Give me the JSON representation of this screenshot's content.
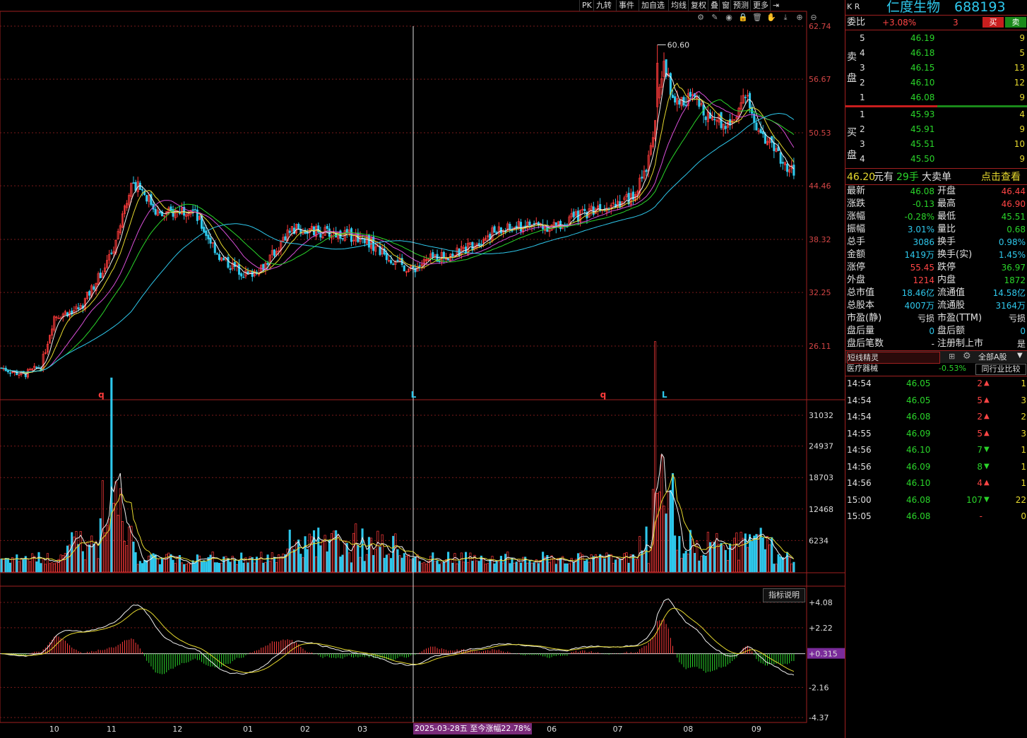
{
  "toolbar": {
    "items": [
      "PK",
      "九转",
      "事件",
      "加自选",
      "均线",
      "复权",
      "叠",
      "窗",
      "预测",
      "更多"
    ],
    "icons": [
      "gear-icon",
      "pencil-icon",
      "eye-icon",
      "lock-icon",
      "trash-icon",
      "hand-icon",
      "download-icon",
      "zoom-in-icon",
      "zoom-out-icon"
    ]
  },
  "stock": {
    "market": "K R",
    "name": "仁度生物",
    "code": "688193",
    "weibi_label": "委比",
    "weibi_value": "+3.08%",
    "weibi_count": "3",
    "buy_btn": "买",
    "sell_btn": "卖"
  },
  "order_book": {
    "sell_label": "卖盘",
    "buy_label": "买盘",
    "asks": [
      {
        "level": "5",
        "price": "46.19",
        "vol": "9"
      },
      {
        "level": "4",
        "price": "46.18",
        "vol": "5"
      },
      {
        "level": "3",
        "price": "46.15",
        "vol": "13"
      },
      {
        "level": "2",
        "price": "46.10",
        "vol": "12"
      },
      {
        "level": "1",
        "price": "46.08",
        "vol": "9"
      }
    ],
    "bids": [
      {
        "level": "1",
        "price": "45.93",
        "vol": "4"
      },
      {
        "level": "2",
        "price": "45.91",
        "vol": "9"
      },
      {
        "level": "3",
        "price": "45.51",
        "vol": "10"
      },
      {
        "level": "4",
        "price": "45.50",
        "vol": "9"
      }
    ],
    "big_order": {
      "price": "46.20",
      "unit": "元有",
      "qty": "29手",
      "type": "大卖单",
      "action": "点击查看"
    }
  },
  "quote": [
    {
      "l1": "最新",
      "v1": "46.08",
      "c1": "green",
      "l2": "开盘",
      "v2": "46.44",
      "c2": "red"
    },
    {
      "l1": "涨跌",
      "v1": "-0.13",
      "c1": "green",
      "l2": "最高",
      "v2": "46.90",
      "c2": "red"
    },
    {
      "l1": "涨幅",
      "v1": "-0.28%",
      "c1": "green",
      "l2": "最低",
      "v2": "45.51",
      "c2": "green"
    },
    {
      "l1": "振幅",
      "v1": "3.01%",
      "c1": "cyan",
      "l2": "量比",
      "v2": "0.68",
      "c2": "green"
    },
    {
      "l1": "总手",
      "v1": "3086",
      "c1": "cyan",
      "l2": "换手",
      "v2": "0.98%",
      "c2": "cyan"
    },
    {
      "l1": "金额",
      "v1": "1419万",
      "c1": "cyan",
      "l2": "换手(实)",
      "v2": "1.45%",
      "c2": "cyan"
    },
    {
      "l1": "涨停",
      "v1": "55.45",
      "c1": "red",
      "l2": "跌停",
      "v2": "36.97",
      "c2": "green"
    },
    {
      "l1": "外盘",
      "v1": "1214",
      "c1": "red",
      "l2": "内盘",
      "v2": "1872",
      "c2": "green"
    },
    {
      "l1": "总市值",
      "v1": "18.46亿",
      "c1": "cyan",
      "l2": "流通值",
      "v2": "14.58亿",
      "c2": "cyan"
    },
    {
      "l1": "总股本",
      "v1": "4007万",
      "c1": "cyan",
      "l2": "流通股",
      "v2": "3164万",
      "c2": "cyan"
    },
    {
      "l1": "市盈(静)",
      "v1": "亏损",
      "c1": "white",
      "l2": "市盈(TTM)",
      "v2": "亏损",
      "c2": "white"
    },
    {
      "l1": "盘后量",
      "v1": "0",
      "c1": "cyan",
      "l2": "盘后额",
      "v2": "0",
      "c2": "cyan"
    },
    {
      "l1": "盘后笔数",
      "v1": "-",
      "c1": "white",
      "l2": "注册制上市",
      "v2": "是",
      "c2": "white"
    }
  ],
  "sector": {
    "tab1": "短线精灵",
    "tab2": "全部A股",
    "industry": "医疗器械",
    "industry_change": "-0.53%",
    "compare": "同行业比较"
  },
  "ticks": [
    {
      "time": "14:54",
      "price": "46.05",
      "vol": "2",
      "dir": "up",
      "n": "1"
    },
    {
      "time": "14:54",
      "price": "46.05",
      "vol": "5",
      "dir": "up",
      "n": "3"
    },
    {
      "time": "14:54",
      "price": "46.08",
      "vol": "2",
      "dir": "up",
      "n": "2"
    },
    {
      "time": "14:55",
      "price": "46.09",
      "vol": "5",
      "dir": "up",
      "n": "3"
    },
    {
      "time": "14:56",
      "price": "46.10",
      "vol": "7",
      "dir": "down",
      "n": "1"
    },
    {
      "time": "14:56",
      "price": "46.09",
      "vol": "8",
      "dir": "down",
      "n": "1"
    },
    {
      "time": "14:56",
      "price": "46.10",
      "vol": "4",
      "dir": "up",
      "n": "1"
    },
    {
      "time": "15:00",
      "price": "46.08",
      "vol": "107",
      "dir": "down",
      "n": "22"
    },
    {
      "time": "15:05",
      "price": "46.08",
      "vol": "-",
      "dir": "none",
      "n": "0"
    }
  ],
  "indicator_btn": "指标说明",
  "date_badge": "2025-03-28五 至今涨幅22.78%",
  "chart_data": {
    "type": "candlestick",
    "price_axis": {
      "ticks": [
        "62.74",
        "56.67",
        "50.53",
        "44.46",
        "38.32",
        "32.25",
        "26.11"
      ],
      "min": 21.6,
      "max": 63.5
    },
    "volume_axis": {
      "ticks": [
        "31032",
        "24937",
        "18703",
        "12468",
        "6234"
      ],
      "max": 31500
    },
    "macd_axis": {
      "ticks": [
        "+4.08",
        "+2.22",
        "+0.315",
        "-2.16",
        "-4.37"
      ],
      "min": -4.37,
      "max": 4.08
    },
    "x_ticks": [
      "10",
      "11",
      "12",
      "01",
      "02",
      "03",
      "06",
      "07",
      "08",
      "09"
    ],
    "annotations": {
      "max_label": "60.60",
      "markers": [
        "q",
        "L",
        "q",
        "L"
      ]
    },
    "anchors": [
      {
        "i": 0,
        "p": 23.6
      },
      {
        "i": 10,
        "p": 22.8
      },
      {
        "i": 18,
        "p": 23.8
      },
      {
        "i": 24,
        "p": 29.5
      },
      {
        "i": 36,
        "p": 30.5
      },
      {
        "i": 50,
        "p": 36.5
      },
      {
        "i": 58,
        "p": 44.0
      },
      {
        "i": 62,
        "p": 44.8
      },
      {
        "i": 72,
        "p": 41.0
      },
      {
        "i": 86,
        "p": 42.0
      },
      {
        "i": 100,
        "p": 36.0
      },
      {
        "i": 112,
        "p": 34.2
      },
      {
        "i": 120,
        "p": 35.5
      },
      {
        "i": 132,
        "p": 39.5
      },
      {
        "i": 150,
        "p": 39.0
      },
      {
        "i": 165,
        "p": 38.5
      },
      {
        "i": 176,
        "p": 36.2
      },
      {
        "i": 186,
        "p": 34.8
      },
      {
        "i": 196,
        "p": 36.2
      },
      {
        "i": 208,
        "p": 36.8
      },
      {
        "i": 222,
        "p": 39.0
      },
      {
        "i": 240,
        "p": 40.0
      },
      {
        "i": 252,
        "p": 39.8
      },
      {
        "i": 272,
        "p": 42.2
      },
      {
        "i": 286,
        "p": 43.0
      },
      {
        "i": 292,
        "p": 45.5
      },
      {
        "i": 297,
        "p": 52.0
      },
      {
        "i": 301,
        "p": 58.5
      },
      {
        "i": 306,
        "p": 54.0
      },
      {
        "i": 313,
        "p": 54.5
      },
      {
        "i": 322,
        "p": 52.5
      },
      {
        "i": 330,
        "p": 51.5
      },
      {
        "i": 338,
        "p": 54.5
      },
      {
        "i": 344,
        "p": 51.0
      },
      {
        "i": 352,
        "p": 48.0
      },
      {
        "i": 360,
        "p": 46.08
      }
    ]
  }
}
